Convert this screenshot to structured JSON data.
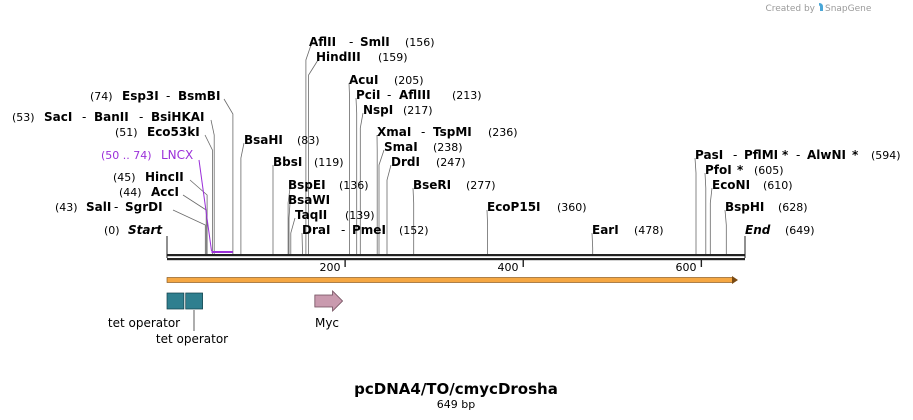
{
  "credit": {
    "prefix": "Created by",
    "brand": "SnapGene"
  },
  "map": {
    "name": "pcDNA4/TO/cmycDrosha",
    "length_text": "649 bp",
    "length_bp": 649,
    "start_label": "Start",
    "start_pos": "(0)",
    "end_label": "End",
    "end_pos": "(649)",
    "ticks": [
      {
        "bp": 200,
        "label": "200"
      },
      {
        "bp": 400,
        "label": "400"
      },
      {
        "bp": 600,
        "label": "600"
      }
    ],
    "colors": {
      "backbone": "#222222",
      "orf_fill": "#f5a742",
      "orf_stroke": "#7a4a12",
      "tet_operator": "#2f7f8f",
      "myc": "#c99aae",
      "feature_label": "#9b30d9",
      "credit": "#9a9a9a",
      "credit_icon": "#4aa7d8"
    }
  },
  "sites": [
    {
      "name": "SalI",
      "extra": "SgrDI",
      "pos": "(43)",
      "bp": 43
    },
    {
      "name": "AccI",
      "pos": "(44)",
      "bp": 44
    },
    {
      "name": "HincII",
      "pos": "(45)",
      "bp": 45
    },
    {
      "name": "Eco53kI",
      "pos": "(51)",
      "bp": 51
    },
    {
      "name": "SacI",
      "extra": "BanII",
      "extra2": "BsiHKAI",
      "pos": "(53)",
      "bp": 53
    },
    {
      "name": "Esp3I",
      "extra": "BsmBI",
      "pos": "(74)",
      "bp": 74
    },
    {
      "name": "BsaHI",
      "pos": "(83)",
      "bp": 83
    },
    {
      "name": "BbsI",
      "pos": "(119)",
      "bp": 119
    },
    {
      "name": "BspEI",
      "pos": "(136)",
      "bp": 136
    },
    {
      "name": "BsaWI",
      "bp": 137
    },
    {
      "name": "TaqII",
      "pos": "(139)",
      "bp": 139
    },
    {
      "name": "DraI",
      "extra": "PmeI",
      "pos": "(152)",
      "bp": 152
    },
    {
      "name": "AflII",
      "extra": "SmlI",
      "pos": "(156)",
      "bp": 156
    },
    {
      "name": "HindIII",
      "pos": "(159)",
      "bp": 159
    },
    {
      "name": "AcuI",
      "pos": "(205)",
      "bp": 205
    },
    {
      "name": "PciI",
      "extra": "AflIII",
      "pos": "(213)",
      "bp": 213
    },
    {
      "name": "NspI",
      "pos": "(217)",
      "bp": 217
    },
    {
      "name": "XmaI",
      "extra": "TspMI",
      "pos": "(236)",
      "bp": 236
    },
    {
      "name": "SmaI",
      "pos": "(238)",
      "bp": 238
    },
    {
      "name": "DrdI",
      "pos": "(247)",
      "bp": 247
    },
    {
      "name": "BseRI",
      "pos": "(277)",
      "bp": 277
    },
    {
      "name": "EcoP15I",
      "pos": "(360)",
      "bp": 360
    },
    {
      "name": "EarI",
      "pos": "(478)",
      "bp": 478
    },
    {
      "name": "PasI",
      "extra": "PflMI",
      "extra2": "AlwNI",
      "pos": "(594)",
      "bp": 594
    },
    {
      "name": "PfoI",
      "pos": "(605)",
      "bp": 605
    },
    {
      "name": "EcoNI",
      "pos": "(610)",
      "bp": 610
    },
    {
      "name": "BspHI",
      "pos": "(628)",
      "bp": 628
    }
  ],
  "lncx": {
    "name": "LNCX",
    "range": "(50 .. 74)",
    "start_bp": 50,
    "end_bp": 74
  },
  "features": [
    {
      "name": "tet operator",
      "start_bp": 0,
      "end_bp": 19
    },
    {
      "name": "tet operator",
      "start_bp": 21,
      "end_bp": 40
    },
    {
      "name": "Myc",
      "start_bp": 166,
      "end_bp": 196
    }
  ],
  "orf": {
    "start_bp": 0,
    "end_bp": 640
  }
}
